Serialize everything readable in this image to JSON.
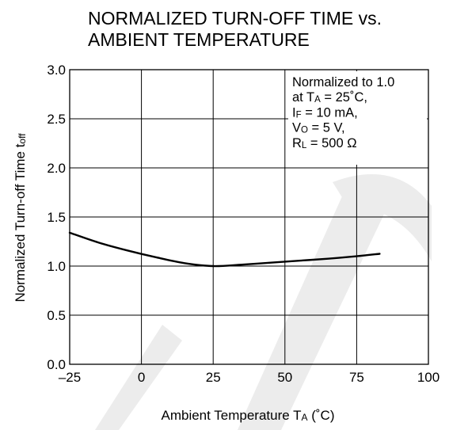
{
  "chart_data": {
    "type": "line",
    "title_lines": [
      "NORMALIZED TURN-OFF TIME vs.",
      "AMBIENT TEMPERATURE"
    ],
    "xlabel": {
      "main": "Ambient Temperature  T",
      "sub": "A",
      "suffix": " (˚C)"
    },
    "ylabel": {
      "main": "Normalized Turn-off Time   t",
      "sub": "off"
    },
    "xlim": [
      -25,
      100
    ],
    "ylim": [
      0.0,
      3.0
    ],
    "x_ticks": [
      -25,
      0,
      25,
      50,
      75,
      100
    ],
    "x_tick_labels": [
      "–25",
      "0",
      "25",
      "50",
      "75",
      "100"
    ],
    "y_ticks": [
      0.0,
      0.5,
      1.0,
      1.5,
      2.0,
      2.5,
      3.0
    ],
    "y_tick_labels": [
      "0.0",
      "0.5",
      "1.0",
      "1.5",
      "2.0",
      "2.5",
      "3.0"
    ],
    "grid": true,
    "series": [
      {
        "x": [
          -25,
          -15,
          -5,
          5,
          15,
          25,
          35,
          45,
          55,
          65,
          75,
          83
        ],
        "y": [
          1.34,
          1.24,
          1.16,
          1.09,
          1.03,
          1.0,
          1.015,
          1.035,
          1.055,
          1.075,
          1.1,
          1.125
        ]
      }
    ],
    "annotation_lines": [
      {
        "main": "Normalized to 1.0",
        "sub": "",
        "rest": ""
      },
      {
        "main": "at T",
        "sub": "A",
        "rest": " = 25˚C,"
      },
      {
        "main": "I",
        "sub": "F",
        "rest": " = 10 mA,"
      },
      {
        "main": "V",
        "sub": "O",
        "rest": " = 5 V,"
      },
      {
        "main": "R",
        "sub": "L",
        "rest": " = 500 Ω"
      }
    ]
  },
  "colors": {
    "line": "#000000",
    "grid": "#000000",
    "watermark": "#e6e6e6"
  }
}
